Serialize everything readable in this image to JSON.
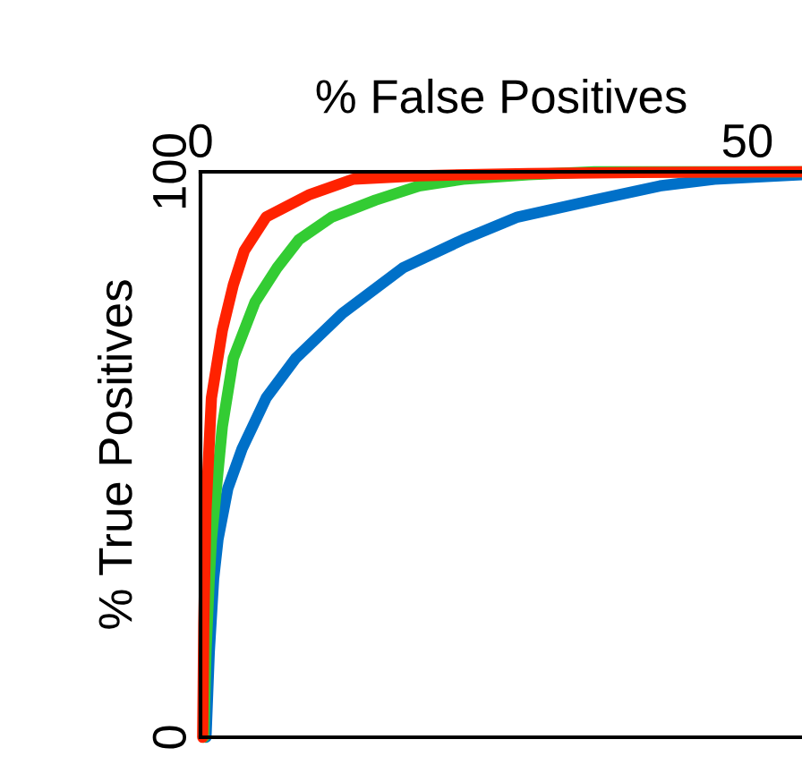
{
  "chart_data": {
    "type": "line",
    "xlabel": "% False Positives",
    "ylabel": "% True Positives",
    "xlim": [
      0,
      55
    ],
    "ylim": [
      0,
      100
    ],
    "xticks": [
      0,
      50
    ],
    "yticks": [
      0,
      100
    ],
    "grid": false,
    "legend": false,
    "marker": "none",
    "line_style": "solid",
    "series": [
      {
        "color": "#0070c8",
        "x": [
          0.5,
          0.8,
          1.2,
          1.6,
          2.5,
          3.8,
          6,
          8.7,
          13,
          18.5,
          24,
          29,
          36,
          42,
          47,
          55
        ],
        "values": [
          0,
          15,
          28,
          35,
          44,
          51,
          60,
          67,
          75,
          83,
          88,
          92,
          95,
          97.5,
          98.7,
          99.5
        ]
      },
      {
        "color": "#33cc33",
        "x": [
          0.3,
          0.5,
          0.8,
          1,
          2,
          3,
          5,
          7,
          9,
          12,
          16,
          20,
          24,
          30,
          36,
          55
        ],
        "values": [
          0,
          15,
          28,
          35,
          55,
          67,
          77,
          83,
          88,
          92,
          95,
          97.5,
          98.7,
          99.5,
          100,
          100
        ]
      },
      {
        "color": "#ff2200",
        "x": [
          0.2,
          0.3,
          0.5,
          1,
          2,
          3,
          4,
          6,
          10,
          14,
          20,
          30,
          40,
          55
        ],
        "values": [
          0,
          20,
          40,
          60,
          72,
          80,
          86,
          92,
          96,
          98.7,
          99.3,
          99.7,
          99.9,
          100
        ]
      }
    ]
  }
}
